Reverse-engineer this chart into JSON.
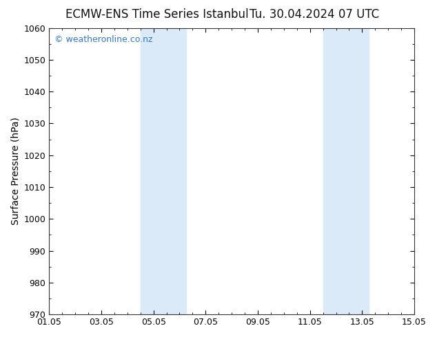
{
  "title_left": "ECMW-ENS Time Series Istanbul",
  "title_right": "Tu. 30.04.2024 07 UTC",
  "ylabel": "Surface Pressure (hPa)",
  "ylim": [
    970,
    1060
  ],
  "yticks": [
    970,
    980,
    990,
    1000,
    1010,
    1020,
    1030,
    1040,
    1050,
    1060
  ],
  "xtick_labels": [
    "01.05",
    "03.05",
    "05.05",
    "07.05",
    "09.05",
    "11.05",
    "13.05",
    "15.05"
  ],
  "xtick_positions": [
    0,
    2,
    4,
    6,
    8,
    10,
    12,
    14
  ],
  "xlim": [
    0,
    14
  ],
  "shaded_regions": [
    {
      "x_start": 3.5,
      "x_end": 5.25
    },
    {
      "x_start": 10.5,
      "x_end": 12.25
    }
  ],
  "shaded_color": "#daeaf8",
  "background_color": "#ffffff",
  "plot_bg_color": "#ffffff",
  "watermark_text": "© weatheronline.co.nz",
  "watermark_color": "#3377cc",
  "title_fontsize": 12,
  "axis_label_fontsize": 10,
  "tick_fontsize": 9,
  "watermark_fontsize": 9
}
